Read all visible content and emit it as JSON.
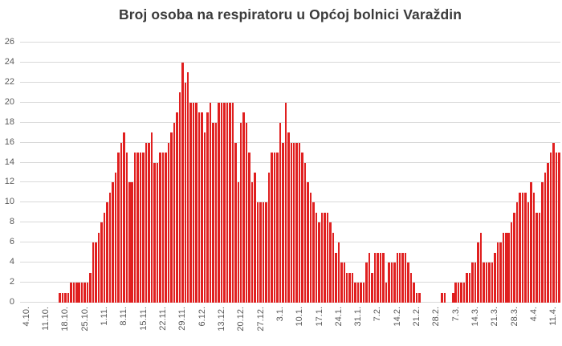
{
  "page": {
    "background": "#ffffff"
  },
  "chart_data": {
    "type": "bar",
    "title": "Broj osoba na respiratoru u Općoj bolnici Varaždin",
    "xlabel": "",
    "ylabel": "",
    "x_frequency": "daily",
    "x_tick_interval_days": 7,
    "x_tick_labels": [
      "4.10.",
      "11.10.",
      "18.10.",
      "25.10.",
      "1.11.",
      "8.11.",
      "15.11.",
      "22.11.",
      "29.11.",
      "6.12.",
      "13.12.",
      "20.12.",
      "27.12.",
      "3.1.",
      "10.1.",
      "17.1.",
      "24.1.",
      "31.1.",
      "7.2.",
      "14.2.",
      "21.2.",
      "28.2.",
      "7.3.",
      "14.3.",
      "21.3.",
      "28.3.",
      "4.4.",
      "11.4."
    ],
    "dates": [
      "4.10.",
      "5.10.",
      "6.10.",
      "7.10.",
      "8.10.",
      "9.10.",
      "10.10.",
      "11.10.",
      "12.10.",
      "13.10.",
      "14.10.",
      "15.10.",
      "16.10.",
      "17.10.",
      "18.10.",
      "19.10.",
      "20.10.",
      "21.10.",
      "22.10.",
      "23.10.",
      "24.10.",
      "25.10.",
      "26.10.",
      "27.10.",
      "28.10.",
      "29.10.",
      "30.10.",
      "31.10.",
      "1.11.",
      "2.11.",
      "3.11.",
      "4.11.",
      "5.11.",
      "6.11.",
      "7.11.",
      "8.11.",
      "9.11.",
      "10.11.",
      "11.11.",
      "12.11.",
      "13.11.",
      "14.11.",
      "15.11.",
      "16.11.",
      "17.11.",
      "18.11.",
      "19.11.",
      "20.11.",
      "21.11.",
      "22.11.",
      "23.11.",
      "24.11.",
      "25.11.",
      "26.11.",
      "27.11.",
      "28.11.",
      "29.11.",
      "30.11.",
      "1.12.",
      "2.12.",
      "3.12.",
      "4.12.",
      "5.12.",
      "6.12.",
      "7.12.",
      "8.12.",
      "9.12.",
      "10.12.",
      "11.12.",
      "12.12.",
      "13.12.",
      "14.12.",
      "15.12.",
      "16.12.",
      "17.12.",
      "18.12.",
      "19.12.",
      "20.12.",
      "21.12.",
      "22.12.",
      "23.12.",
      "24.12.",
      "25.12.",
      "26.12.",
      "27.12.",
      "28.12.",
      "29.12.",
      "30.12.",
      "31.12.",
      "1.1.",
      "2.1.",
      "3.1.",
      "4.1.",
      "5.1.",
      "6.1.",
      "7.1.",
      "8.1.",
      "9.1.",
      "10.1.",
      "11.1.",
      "12.1.",
      "13.1.",
      "14.1.",
      "15.1.",
      "16.1.",
      "17.1.",
      "18.1.",
      "19.1.",
      "20.1.",
      "21.1.",
      "22.1.",
      "23.1.",
      "24.1.",
      "25.1.",
      "26.1.",
      "27.1.",
      "28.1.",
      "29.1.",
      "30.1.",
      "31.1.",
      "1.2.",
      "2.2.",
      "3.2.",
      "4.2.",
      "5.2.",
      "6.2.",
      "7.2.",
      "8.2.",
      "9.2.",
      "10.2.",
      "11.2.",
      "12.2.",
      "13.2.",
      "14.2.",
      "15.2.",
      "16.2.",
      "17.2.",
      "18.2.",
      "19.2.",
      "20.2.",
      "21.2.",
      "22.2.",
      "23.2.",
      "24.2.",
      "25.2.",
      "26.2.",
      "27.2.",
      "28.2.",
      "1.3.",
      "2.3.",
      "3.3.",
      "4.3.",
      "5.3.",
      "6.3.",
      "7.3.",
      "8.3.",
      "9.3.",
      "10.3.",
      "11.3.",
      "12.3.",
      "13.3.",
      "14.3.",
      "15.3.",
      "16.3.",
      "17.3.",
      "18.3.",
      "19.3.",
      "20.3.",
      "21.3.",
      "22.3.",
      "23.3.",
      "24.3.",
      "25.3.",
      "26.3.",
      "27.3.",
      "28.3.",
      "29.3.",
      "30.3.",
      "31.3.",
      "1.4.",
      "2.4.",
      "3.4.",
      "4.4.",
      "5.4.",
      "6.4.",
      "7.4.",
      "8.4.",
      "9.4.",
      "10.4.",
      "11.4.",
      "12.4.",
      "13.4."
    ],
    "values": [
      0,
      0,
      0,
      0,
      0,
      0,
      0,
      0,
      0,
      0,
      0,
      0,
      1,
      1,
      1,
      1,
      2,
      2,
      2,
      2,
      2,
      2,
      2,
      3,
      6,
      6,
      7,
      8,
      9,
      10,
      11,
      12,
      13,
      15,
      16,
      17,
      15,
      12,
      12,
      15,
      15,
      15,
      15,
      16,
      16,
      17,
      14,
      14,
      15,
      15,
      15,
      16,
      17,
      18,
      19,
      21,
      24,
      22,
      23,
      20,
      20,
      20,
      19,
      19,
      17,
      19,
      20,
      18,
      18,
      20,
      20,
      20,
      20,
      20,
      20,
      16,
      12,
      18,
      19,
      18,
      15,
      12,
      13,
      10,
      10,
      10,
      10,
      13,
      15,
      15,
      15,
      18,
      16,
      20,
      17,
      16,
      16,
      16,
      16,
      15,
      14,
      12,
      11,
      10,
      9,
      8,
      9,
      9,
      9,
      8,
      7,
      5,
      6,
      4,
      4,
      3,
      3,
      3,
      2,
      2,
      2,
      2,
      4,
      5,
      3,
      5,
      5,
      5,
      5,
      2,
      4,
      4,
      4,
      5,
      5,
      5,
      5,
      4,
      3,
      2,
      1,
      1,
      0,
      0,
      0,
      0,
      0,
      0,
      0,
      1,
      1,
      0,
      0,
      1,
      2,
      2,
      2,
      2,
      3,
      3,
      4,
      4,
      6,
      7,
      4,
      4,
      4,
      4,
      5,
      6,
      6,
      7,
      7,
      7,
      8,
      9,
      10,
      11,
      11,
      11,
      10,
      12,
      11,
      9,
      9,
      12,
      13,
      14,
      15,
      16,
      15,
      15
    ],
    "ylim": [
      0,
      26
    ],
    "y_ticks": [
      0,
      2,
      4,
      6,
      8,
      10,
      12,
      14,
      16,
      18,
      20,
      22,
      24,
      26
    ],
    "grid": "horizontal",
    "legend": "none",
    "bar_color": "#e01f1f",
    "gridline_color": "#d9d9d9",
    "axis_label_color": "#595959",
    "title_color": "#3b3b3b"
  }
}
